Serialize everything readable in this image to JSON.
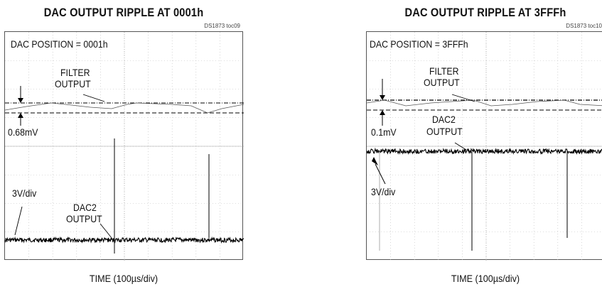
{
  "chart_data": [
    {
      "type": "line",
      "title": "DAC OUTPUT RIPPLE AT 0001h",
      "figure_id": "DS1873 toc09",
      "xlabel": "TIME (100µs/div)",
      "grid": true,
      "annotations": {
        "dac_position": "DAC POSITION = 0001h",
        "filter_label_1": "FILTER",
        "filter_label_2": "OUTPUT",
        "ripple": "0.68mV",
        "scale": "3V/div",
        "dac_label_1": "DAC2",
        "dac_label_2": "OUTPUT"
      }
    },
    {
      "type": "line",
      "title": "DAC OUTPUT RIPPLE AT 3FFFh",
      "figure_id": "DS1873 toc10",
      "xlabel": "TIME (100µs/div)",
      "grid": true,
      "annotations": {
        "dac_position": "DAC POSITION = 3FFFh",
        "filter_label_1": "FILTER",
        "filter_label_2": "OUTPUT",
        "ripple": "0.1mV",
        "scale": "3V/div",
        "dac_label_1": "DAC2",
        "dac_label_2": "OUTPUT"
      }
    }
  ]
}
